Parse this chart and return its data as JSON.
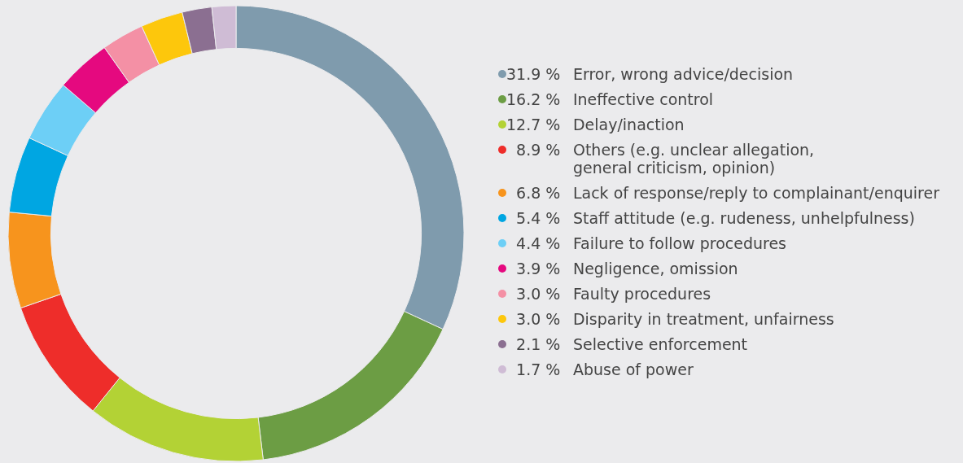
{
  "chart_data": {
    "type": "donut",
    "categories": [
      "Error, wrong advice/decision",
      "Ineffective control",
      "Delay/inaction",
      "Others (e.g. unclear allegation,\ngeneral criticism, opinion)",
      "Lack of response/reply to complainant/enquirer",
      "Staff attitude (e.g. rudeness, unhelpfulness)",
      "Failure to follow procedures",
      "Negligence, omission",
      "Faulty procedures",
      "Disparity in treatment, unfairness",
      "Selective enforcement",
      "Abuse of power"
    ],
    "values": [
      31.9,
      16.2,
      12.7,
      8.9,
      6.8,
      5.4,
      4.4,
      3.9,
      3.0,
      3.0,
      2.1,
      1.7
    ],
    "value_labels": [
      "31.9 %",
      "16.2 %",
      "12.7 %",
      "8.9 %",
      "6.8 %",
      "5.4 %",
      "4.4 %",
      "3.9 %",
      "3.0 %",
      "3.0 %",
      "2.1 %",
      "1.7 %"
    ],
    "colors": [
      "#7f9bad",
      "#6c9d44",
      "#b3d235",
      "#ee2d2a",
      "#f7941d",
      "#00a6e2",
      "#6dcff6",
      "#e5097f",
      "#f490a5",
      "#fdc70c",
      "#8b6f91",
      "#cfbcd5"
    ],
    "legend": "right"
  }
}
